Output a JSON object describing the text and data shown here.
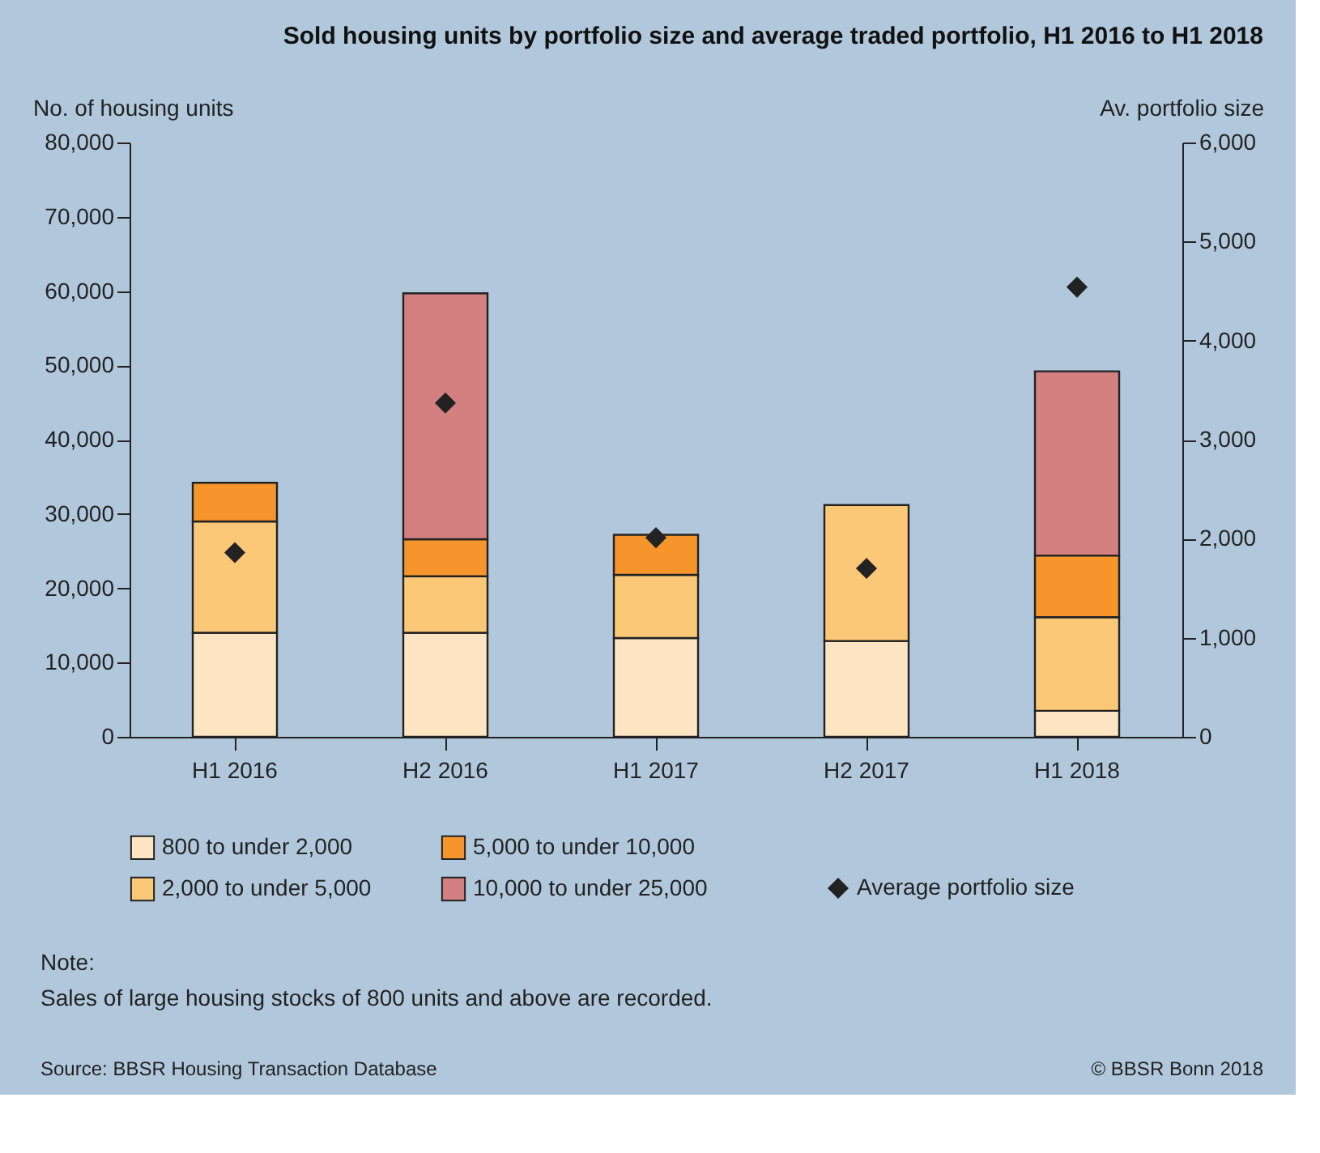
{
  "chart_data": {
    "type": "bar",
    "title": "Sold housing units by portfolio size and average traded portfolio, H1 2016 to H1 2018",
    "categories": [
      "H1 2016",
      "H2 2016",
      "H1 2017",
      "H2 2017",
      "H1 2018"
    ],
    "stacked": true,
    "series": [
      {
        "name": "800 to under 2,000",
        "color": "#fde4c2",
        "values": [
          14000,
          14000,
          13300,
          12900,
          3500
        ]
      },
      {
        "name": "2,000 to under 5,000",
        "color": "#fbc878",
        "values": [
          15000,
          7600,
          8500,
          18300,
          12600
        ]
      },
      {
        "name": "5,000 to under 10,000",
        "color": "#f5952c",
        "values": [
          5200,
          5000,
          5400,
          null,
          8300
        ]
      },
      {
        "name": "10,000 to under 25,000",
        "color": "#d48080",
        "values": [
          null,
          33100,
          null,
          null,
          24800
        ]
      },
      {
        "name": "Average portfolio size",
        "type": "scatter",
        "axis": "y2",
        "marker": "diamond",
        "color": "#222222",
        "values": [
          1860,
          3370,
          2010,
          1700,
          4540
        ]
      }
    ],
    "ylabel": "No. of housing units",
    "y2label": "Av. portfolio size",
    "ylim": [
      0,
      80000
    ],
    "yticks": [
      0,
      {
        "value": 10000,
        "label": "10,000"
      },
      {
        "value": 20000,
        "label": "20,000"
      },
      {
        "value": 30000,
        "label": "30,000"
      },
      {
        "value": 40000,
        "label": "40,000"
      },
      {
        "value": 50000,
        "label": "50,000"
      },
      {
        "value": 60000,
        "label": "60,000"
      },
      {
        "value": 70000,
        "label": "70,000"
      },
      {
        "value": 80000,
        "label": "80,000"
      }
    ],
    "y2lim": [
      0,
      6000
    ],
    "y2ticks": [
      0,
      {
        "value": 1000,
        "label": "1,000"
      },
      {
        "value": 2000,
        "label": "2,000"
      },
      {
        "value": 3000,
        "label": "3,000"
      },
      {
        "value": 4000,
        "label": "4,000"
      },
      {
        "value": 5000,
        "label": "5,000"
      },
      {
        "value": 6000,
        "label": "6,000"
      }
    ],
    "grid": false,
    "legend": "bottom",
    "annotations": [
      "Note:",
      "Sales of large housing stocks of 800 units and above are recorded.",
      "Source: BBSR Housing Transaction Database",
      "© BBSR Bonn 2018"
    ]
  }
}
